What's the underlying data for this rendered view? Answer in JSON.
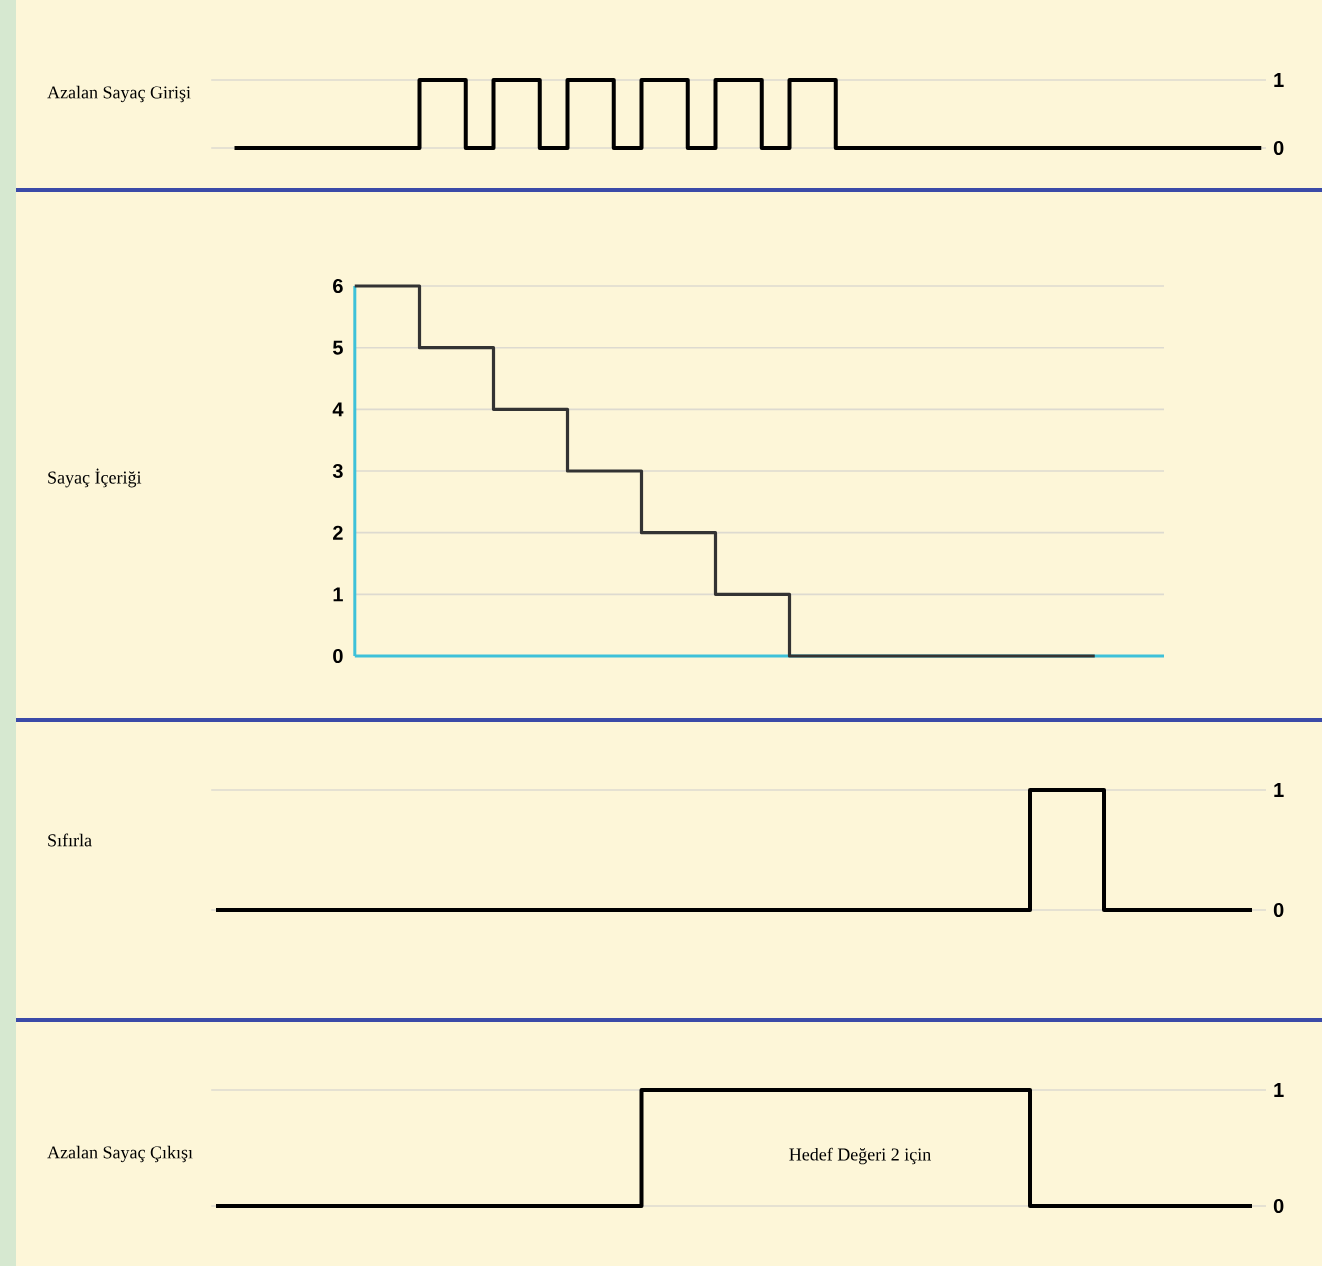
{
  "chart_data": [
    {
      "type": "step",
      "ylabel": "Azalan Sayaç Girişi",
      "ylim": [
        0,
        1
      ],
      "yticks": [
        0,
        1
      ],
      "grid": "y",
      "tick_labels": "y",
      "categories": [
        null,
        null,
        null,
        null,
        null,
        null,
        null,
        null,
        null,
        null,
        null,
        null,
        null,
        null,
        null,
        null,
        null,
        null,
        null,
        null,
        null,
        null,
        null,
        null,
        null,
        null,
        null,
        null,
        null,
        null,
        null,
        null,
        null,
        null,
        null,
        null,
        null,
        null,
        null,
        null,
        null,
        null,
        null,
        null,
        null,
        null,
        null,
        null,
        null,
        null,
        null,
        null,
        null,
        null,
        null,
        null,
        null,
        null,
        null,
        null,
        null,
        null,
        null,
        null,
        null,
        null,
        null,
        null,
        null,
        null,
        null,
        null,
        null,
        null,
        null,
        null,
        null,
        null,
        null,
        null,
        null,
        null,
        null,
        null,
        null,
        null,
        null,
        null,
        null,
        null,
        null,
        null,
        null,
        null,
        null,
        null,
        null,
        null,
        null,
        null,
        null,
        null,
        null,
        null,
        null,
        null,
        null,
        null,
        null,
        null,
        null,
        null,
        null,
        null
      ],
      "series": [
        {
          "color": "#000000",
          "values": [
            null,
            null,
            0,
            0,
            0,
            0,
            0,
            0,
            0,
            0,
            0,
            0,
            0,
            0,
            0,
            0,
            0,
            0,
            0,
            0,
            0,
            0,
            1,
            1,
            1,
            1,
            1,
            0,
            0,
            0,
            1,
            1,
            1,
            1,
            1,
            0,
            0,
            0,
            1,
            1,
            1,
            1,
            1,
            0,
            0,
            0,
            1,
            1,
            1,
            1,
            1,
            0,
            0,
            0,
            1,
            1,
            1,
            1,
            1,
            0,
            0,
            0,
            1,
            1,
            1,
            1,
            1,
            0,
            0,
            0,
            0,
            0,
            0,
            0,
            0,
            0,
            0,
            0,
            0,
            0,
            0,
            0,
            0,
            0,
            0,
            0,
            0,
            0,
            0,
            0,
            0,
            0,
            0,
            0,
            0,
            0,
            0,
            0,
            0,
            0,
            0,
            0,
            0,
            0,
            0,
            0,
            0,
            0,
            0,
            0,
            0,
            0,
            0,
            0
          ]
        }
      ]
    },
    {
      "type": "step",
      "ylabel": "Sayaç İçeriği",
      "ylim": [
        0,
        6
      ],
      "yticks": [
        0,
        1,
        2,
        3,
        4,
        5,
        6
      ],
      "grid": "y",
      "tick_labels": "y",
      "categories": [
        null,
        null,
        null,
        null,
        null,
        null,
        null,
        null,
        null,
        null,
        null,
        null,
        null,
        null,
        null,
        null,
        null,
        null,
        null,
        null,
        null,
        null,
        null,
        null,
        null,
        null,
        null,
        null,
        null,
        null,
        null,
        null,
        null,
        null,
        null,
        null,
        null,
        null,
        null,
        null,
        null,
        null,
        null,
        null,
        null,
        null,
        null,
        null,
        null,
        null,
        null,
        null,
        null,
        null,
        null,
        null,
        null,
        null,
        null,
        null,
        null,
        null,
        null,
        null,
        null,
        null,
        null,
        null,
        null,
        null,
        null,
        null,
        null,
        null,
        null,
        null,
        null,
        null,
        null,
        null,
        null,
        null,
        null,
        null,
        null,
        null,
        null,
        null,
        null,
        null,
        null,
        null,
        null,
        null,
        null,
        null,
        null,
        null,
        null,
        null,
        null,
        null,
        null,
        null,
        null,
        null,
        null,
        null,
        null,
        null,
        null,
        null,
        null,
        null
      ],
      "series": [
        {
          "color": "#333333",
          "values": [
            null,
            null,
            null,
            null,
            null,
            null,
            null,
            null,
            null,
            null,
            null,
            null,
            null,
            null,
            null,
            6,
            6,
            6,
            6,
            6,
            6,
            6,
            5,
            5,
            5,
            5,
            5,
            5,
            5,
            5,
            4,
            4,
            4,
            4,
            4,
            4,
            4,
            4,
            3,
            3,
            3,
            3,
            3,
            3,
            3,
            3,
            2,
            2,
            2,
            2,
            2,
            2,
            2,
            2,
            1,
            1,
            1,
            1,
            1,
            1,
            1,
            1,
            0,
            0,
            0,
            0,
            0,
            0,
            0,
            0,
            0,
            0,
            0,
            0,
            0,
            0,
            0,
            0,
            0,
            0,
            0,
            0,
            0,
            0,
            0,
            0,
            0,
            0,
            0,
            0,
            0,
            0,
            0,
            0,
            0,
            0,
            null,
            null,
            null,
            null,
            null,
            null,
            null,
            null,
            null,
            null,
            null,
            null,
            null,
            null,
            null,
            null,
            null,
            null
          ]
        }
      ]
    },
    {
      "type": "step",
      "ylabel": "Sıfırla",
      "ylim": [
        0,
        1
      ],
      "yticks": [
        0,
        1
      ],
      "grid": "y",
      "tick_labels": "y",
      "categories": [
        null,
        null,
        null,
        null,
        null,
        null,
        null,
        null,
        null,
        null,
        null,
        null,
        null,
        null,
        null,
        null,
        null,
        null,
        null,
        null,
        null,
        null,
        null,
        null,
        null,
        null,
        null,
        null,
        null,
        null,
        null,
        null,
        null,
        null,
        null,
        null,
        null,
        null,
        null,
        null,
        null,
        null,
        null,
        null,
        null,
        null,
        null,
        null,
        null,
        null,
        null,
        null,
        null,
        null,
        null,
        null,
        null,
        null,
        null,
        null,
        null,
        null,
        null,
        null,
        null,
        null,
        null,
        null,
        null,
        null,
        null,
        null,
        null,
        null,
        null,
        null,
        null,
        null,
        null,
        null,
        null,
        null,
        null,
        null,
        null,
        null,
        null,
        null,
        null,
        null,
        null,
        null,
        null,
        null,
        null,
        null,
        null,
        null,
        null,
        null,
        null,
        null,
        null,
        null,
        null,
        null,
        null,
        null,
        null,
        null,
        null,
        null,
        null,
        null
      ],
      "series": [
        {
          "color": "#000000",
          "values": [
            0,
            0,
            0,
            0,
            0,
            0,
            0,
            0,
            0,
            0,
            0,
            0,
            0,
            0,
            0,
            0,
            0,
            0,
            0,
            0,
            0,
            0,
            0,
            0,
            0,
            0,
            0,
            0,
            0,
            0,
            0,
            0,
            0,
            0,
            0,
            0,
            0,
            0,
            0,
            0,
            0,
            0,
            0,
            0,
            0,
            0,
            0,
            0,
            0,
            0,
            0,
            0,
            0,
            0,
            0,
            0,
            0,
            0,
            0,
            0,
            0,
            0,
            0,
            0,
            0,
            0,
            0,
            0,
            0,
            0,
            0,
            0,
            0,
            0,
            0,
            0,
            0,
            0,
            0,
            0,
            0,
            0,
            0,
            0,
            0,
            0,
            0,
            0,
            1,
            1,
            1,
            1,
            1,
            1,
            1,
            1,
            0,
            0,
            0,
            0,
            0,
            0,
            0,
            0,
            0,
            0,
            0,
            0,
            0,
            0,
            0,
            0,
            0,
            null
          ]
        }
      ]
    },
    {
      "type": "step",
      "ylabel": "Azalan Sayaç Çıkışı",
      "ylim": [
        0,
        1
      ],
      "yticks": [
        0,
        1
      ],
      "grid": "y",
      "tick_labels": "y",
      "annotations": [
        "Hedef Değeri 2 için"
      ],
      "categories": [
        null,
        null,
        null,
        null,
        null,
        null,
        null,
        null,
        null,
        null,
        null,
        null,
        null,
        null,
        null,
        null,
        null,
        null,
        null,
        null,
        null,
        null,
        null,
        null,
        null,
        null,
        null,
        null,
        null,
        null,
        null,
        null,
        null,
        null,
        null,
        null,
        null,
        null,
        null,
        null,
        null,
        null,
        null,
        null,
        null,
        null,
        null,
        null,
        null,
        null,
        null,
        null,
        null,
        null,
        null,
        null,
        null,
        null,
        null,
        null,
        null,
        null,
        null,
        null,
        null,
        null,
        null,
        null,
        null,
        null,
        null,
        null,
        null,
        null,
        null,
        null,
        null,
        null,
        null,
        null,
        null,
        null,
        null,
        null,
        null,
        null,
        null,
        null,
        null,
        null,
        null,
        null,
        null,
        null,
        null,
        null,
        null,
        null,
        null,
        null,
        null,
        null,
        null,
        null,
        null,
        null,
        null,
        null,
        null,
        null,
        null,
        null,
        null,
        null
      ],
      "series": [
        {
          "color": "#000000",
          "values": [
            0,
            0,
            0,
            0,
            0,
            0,
            0,
            0,
            0,
            0,
            0,
            0,
            0,
            0,
            0,
            0,
            0,
            0,
            0,
            0,
            0,
            0,
            0,
            0,
            0,
            0,
            0,
            0,
            0,
            0,
            0,
            0,
            0,
            0,
            0,
            0,
            0,
            0,
            0,
            0,
            0,
            0,
            0,
            0,
            0,
            0,
            1,
            1,
            1,
            1,
            1,
            1,
            1,
            1,
            1,
            1,
            1,
            1,
            1,
            1,
            1,
            1,
            1,
            1,
            1,
            1,
            1,
            1,
            1,
            1,
            1,
            1,
            1,
            1,
            1,
            1,
            1,
            1,
            1,
            1,
            1,
            1,
            1,
            1,
            1,
            1,
            1,
            1,
            0,
            0,
            0,
            0,
            0,
            0,
            0,
            0,
            0,
            0,
            0,
            0,
            0,
            0,
            0,
            0,
            0,
            0,
            0,
            0,
            0,
            0,
            0,
            0,
            0,
            null
          ]
        }
      ]
    }
  ]
}
